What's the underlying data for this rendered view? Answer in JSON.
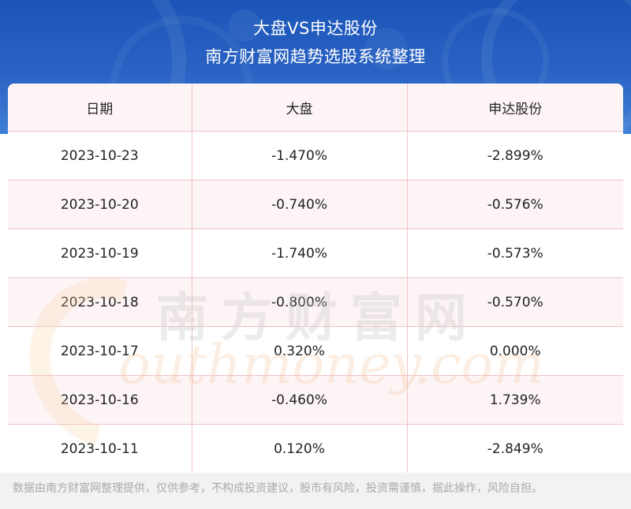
{
  "header": {
    "title": "大盘VS申达股份",
    "subtitle": "南方财富网趋势选股系统整理"
  },
  "table": {
    "columns": [
      "日期",
      "大盘",
      "申达股份"
    ],
    "rows": [
      [
        "2023-10-23",
        "-1.470%",
        "-2.899%"
      ],
      [
        "2023-10-20",
        "-0.740%",
        "-0.576%"
      ],
      [
        "2023-10-19",
        "-1.740%",
        "-0.573%"
      ],
      [
        "2023-10-18",
        "-0.800%",
        "-0.570%"
      ],
      [
        "2023-10-17",
        "0.320%",
        "0.000%"
      ],
      [
        "2023-10-16",
        "-0.460%",
        "1.739%"
      ],
      [
        "2023-10-11",
        "0.120%",
        "-2.849%"
      ]
    ]
  },
  "watermark": {
    "cn": "南方财富网",
    "en": "outhmoney.com"
  },
  "footer": {
    "disclaimer": "数据由南方财富网整理提供，仅供参考，不构成投资建议，股市有风险，投资需谨慎，据此操作，风险自担。"
  },
  "colors": {
    "banner": "#1b55b8",
    "border": "#f0c2c8",
    "row_alt": "#fdf4f5",
    "footer_bg": "#f2f2f2"
  }
}
